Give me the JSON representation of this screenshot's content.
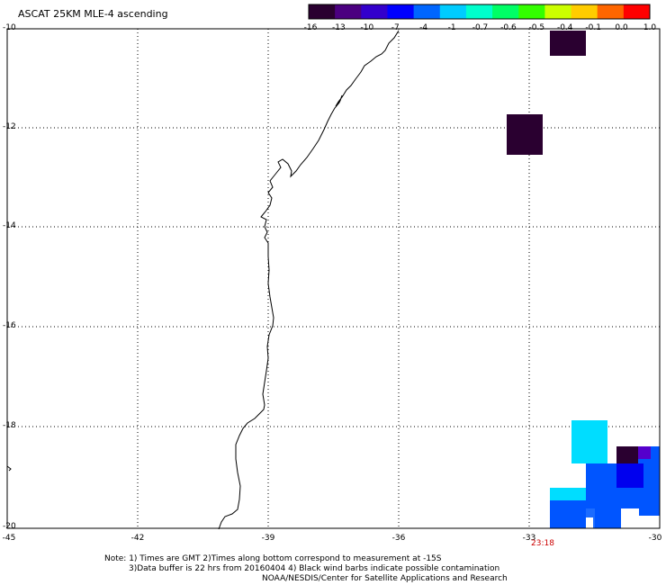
{
  "title": "ASCAT 25KM MLE-4 ascending",
  "colorbar": {
    "labels": [
      "-16",
      "-13",
      "-10",
      "-7",
      "-4",
      "-1",
      "-0.7",
      "-0.6",
      "-0.5",
      "-0.4",
      "-0.1",
      "0.0",
      "1.0"
    ],
    "colors": [
      "#2a0030",
      "#4b0080",
      "#3300cc",
      "#0000ff",
      "#0066ff",
      "#00ccff",
      "#00ffcc",
      "#00ff66",
      "#33ff00",
      "#ccff00",
      "#ffcc00",
      "#ff6600",
      "#ff0000"
    ]
  },
  "axes": {
    "lat_labels": [
      "-10",
      "-12",
      "-14",
      "-16",
      "-18",
      "-20"
    ],
    "lon_labels": [
      "-45",
      "-42",
      "-39",
      "-36",
      "-33",
      "-30"
    ]
  },
  "time_label": "23:18",
  "notes": [
    "Note: 1) Times are GMT 2)Times along bottom correspond to measurement at -15S",
    "3)Data buffer is 22 hrs from 20160404 4) Black wind barbs indicate possible contamination",
    "NOAA/NESDIS/Center for Satellite Applications and Research"
  ],
  "colors": {
    "dark_purple": "#2a0030",
    "cyan": "#00ddff",
    "blue": "#0055ff",
    "time_red": "#cc0000"
  }
}
